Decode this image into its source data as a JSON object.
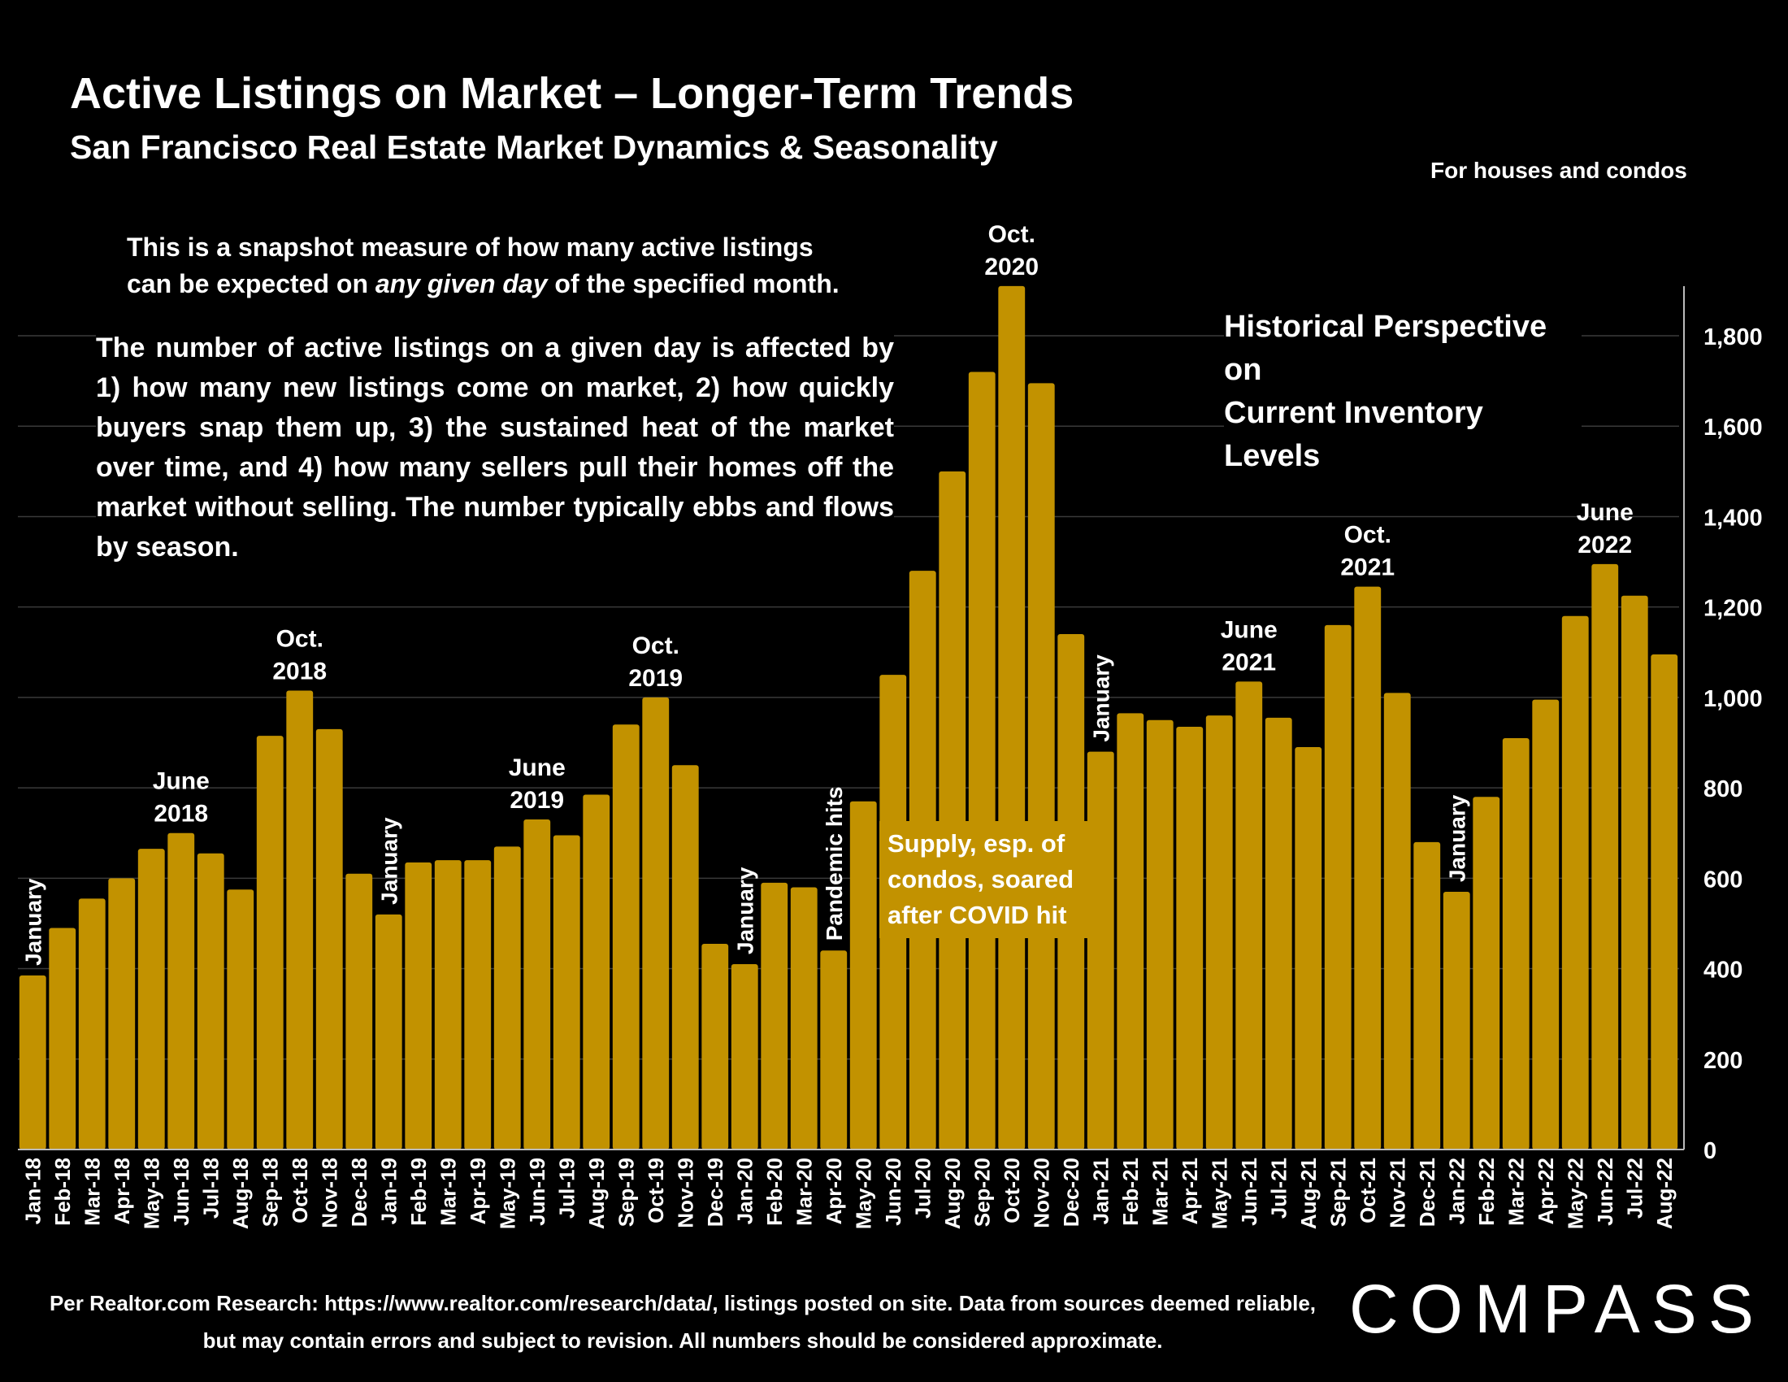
{
  "header": {
    "title": "Active Listings on Market – Longer-Term Trends",
    "subtitle": "San Francisco Real Estate Market Dynamics & Seasonality",
    "note": "For houses and condos"
  },
  "intro": {
    "line1": "This is a snapshot measure of how many active listings",
    "line2_pre": "can be expected on ",
    "line2_em": "any given day",
    "line2_post": " of the specified month."
  },
  "paragraph": "The number of active listings on a given day is affected by 1) how many new listings come on market, 2) how quickly buyers snap them up, 3) the sustained heat of the market over time, and 4) how many sellers pull their homes off the market without selling. The number typically ebbs and flows by season.",
  "perspective": {
    "line1": "Historical Perspective on",
    "line2": "Current Inventory Levels"
  },
  "covid_note": "Supply, esp. of condos, soared after COVID hit",
  "footer": {
    "source": "Per Realtor.com Research: https://www.realtor.com/research/data/, listings posted on site. Data from sources deemed reliable, but may contain errors and subject to revision. All numbers should be considered approximate.",
    "logo": "COMPASS"
  },
  "colors": {
    "bar": "#c29200",
    "background": "#000000",
    "text": "#ffffff",
    "grid": "#3a3a3a"
  },
  "chart_data": {
    "type": "bar",
    "ylim": [
      0,
      1900
    ],
    "yticks": [
      0,
      200,
      400,
      600,
      800,
      1000,
      1200,
      1400,
      1600,
      1800
    ],
    "ytick_labels": [
      "0",
      "200",
      "400",
      "600",
      "800",
      "1,000",
      "1,200",
      "1,400",
      "1,600",
      "1,800"
    ],
    "y_axis_side": "right",
    "grid": true,
    "categories": [
      "Jan-18",
      "Feb-18",
      "Mar-18",
      "Apr-18",
      "May-18",
      "Jun-18",
      "Jul-18",
      "Aug-18",
      "Sep-18",
      "Oct-18",
      "Nov-18",
      "Dec-18",
      "Jan-19",
      "Feb-19",
      "Mar-19",
      "Apr-19",
      "May-19",
      "Jun-19",
      "Jul-19",
      "Aug-19",
      "Sep-19",
      "Oct-19",
      "Nov-19",
      "Dec-19",
      "Jan-20",
      "Feb-20",
      "Mar-20",
      "Apr-20",
      "May-20",
      "Jun-20",
      "Jul-20",
      "Aug-20",
      "Sep-20",
      "Oct-20",
      "Nov-20",
      "Dec-20",
      "Jan-21",
      "Feb-21",
      "Mar-21",
      "Apr-21",
      "May-21",
      "Jun-21",
      "Jul-21",
      "Aug-21",
      "Sep-21",
      "Oct-21",
      "Nov-21",
      "Dec-21",
      "Jan-22",
      "Feb-22",
      "Mar-22",
      "Apr-22",
      "May-22",
      "Jun-22",
      "Jul-22",
      "Aug-22"
    ],
    "values": [
      385,
      490,
      555,
      600,
      665,
      700,
      655,
      575,
      915,
      1015,
      930,
      610,
      520,
      635,
      640,
      640,
      670,
      730,
      695,
      785,
      940,
      1000,
      850,
      455,
      410,
      590,
      580,
      440,
      770,
      1050,
      1280,
      1500,
      1720,
      1910,
      1695,
      1140,
      880,
      965,
      950,
      935,
      960,
      1035,
      955,
      890,
      1160,
      1245,
      1010,
      680,
      570,
      780,
      910,
      995,
      1180,
      1295,
      1225,
      1095
    ],
    "annotations": [
      {
        "index": 0,
        "text": "January",
        "vertical": true
      },
      {
        "index": 5,
        "text": "June 2018"
      },
      {
        "index": 9,
        "text": "Oct. 2018"
      },
      {
        "index": 12,
        "text": "January",
        "vertical": true
      },
      {
        "index": 17,
        "text": "June 2019"
      },
      {
        "index": 21,
        "text": "Oct. 2019"
      },
      {
        "index": 24,
        "text": "January",
        "vertical": true
      },
      {
        "index": 27,
        "text": "Pandemic hits",
        "vertical": true
      },
      {
        "index": 33,
        "text": "Oct. 2020"
      },
      {
        "index": 36,
        "text": "January",
        "vertical": true
      },
      {
        "index": 41,
        "text": "June 2021"
      },
      {
        "index": 45,
        "text": "Oct. 2021"
      },
      {
        "index": 48,
        "text": "January",
        "vertical": true
      },
      {
        "index": 53,
        "text": "June 2022"
      }
    ]
  }
}
